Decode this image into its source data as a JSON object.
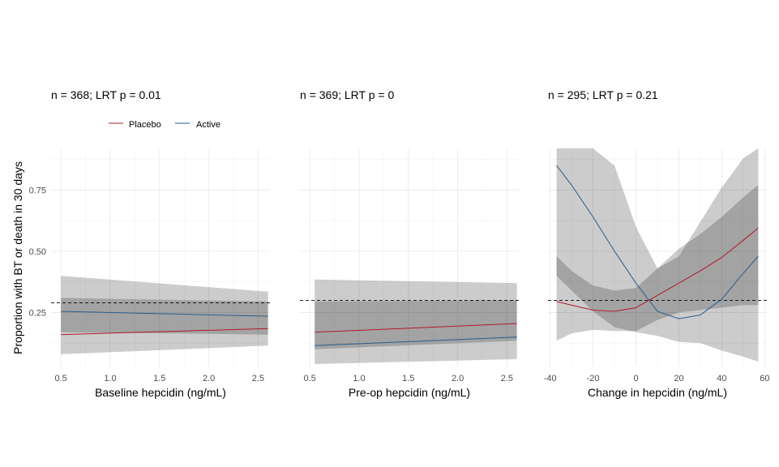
{
  "figure": {
    "ylabel": "Proportion with BT or death in 30 days",
    "legend": [
      {
        "label": "Placebo",
        "color": "#b2182b"
      },
      {
        "label": "Active",
        "color": "#2b5c8a"
      }
    ]
  },
  "chart_data": [
    {
      "type": "line",
      "title": "n = 368; LRT p = 0.01",
      "xlabel": "Baseline hepcidin (ng/mL)",
      "ylabel": "Proportion with BT or death in 30 days",
      "xlim": [
        0.4,
        2.62
      ],
      "ylim": [
        0.03,
        0.92
      ],
      "xticks": [
        0.5,
        1.0,
        1.5,
        2.0,
        2.5
      ],
      "xtick_labels": [
        "0.5",
        "1.0",
        "1.5",
        "2.0",
        "2.5"
      ],
      "yticks": [
        0.25,
        0.5,
        0.75
      ],
      "ytick_labels": [
        "0.25",
        "0.50",
        "0.75"
      ],
      "reference_line": 0.29,
      "legend_position": "top",
      "grid": true,
      "series": [
        {
          "name": "Placebo",
          "color": "#b2182b",
          "x": [
            0.5,
            2.6
          ],
          "y": [
            0.16,
            0.185
          ],
          "lower": [
            0.08,
            0.115
          ],
          "upper": [
            0.31,
            0.295
          ]
        },
        {
          "name": "Active",
          "color": "#2b5c8a",
          "x": [
            0.5,
            2.6
          ],
          "y": [
            0.255,
            0.235
          ],
          "lower": [
            0.17,
            0.16
          ],
          "upper": [
            0.4,
            0.335
          ]
        }
      ]
    },
    {
      "type": "line",
      "title": "n = 369; LRT p = 0",
      "xlabel": "Pre-op hepcidin (ng/mL)",
      "xlim": [
        0.4,
        2.62
      ],
      "ylim": [
        0.03,
        0.92
      ],
      "xticks": [
        0.5,
        1.0,
        1.5,
        2.0,
        2.5
      ],
      "xtick_labels": [
        "0.5",
        "1.0",
        "1.5",
        "2.0",
        "2.5"
      ],
      "yticks": [
        0.25,
        0.5,
        0.75
      ],
      "reference_line": 0.3,
      "grid": true,
      "series": [
        {
          "name": "Placebo",
          "color": "#b2182b",
          "x": [
            0.55,
            2.6
          ],
          "y": [
            0.17,
            0.205
          ],
          "lower": [
            0.1,
            0.135
          ],
          "upper": [
            0.295,
            0.3
          ]
        },
        {
          "name": "Active",
          "color": "#2b5c8a",
          "x": [
            0.55,
            2.6
          ],
          "y": [
            0.115,
            0.15
          ],
          "lower": [
            0.04,
            0.06
          ],
          "upper": [
            0.385,
            0.37
          ]
        }
      ]
    },
    {
      "type": "line",
      "title": "n = 295; LRT p = 0.21",
      "xlabel": "Change in hepcidin (ng/mL)",
      "xlim": [
        -41,
        61
      ],
      "ylim": [
        0.03,
        0.92
      ],
      "xticks": [
        -40,
        -20,
        0,
        20,
        40,
        60
      ],
      "xtick_labels": [
        "-40",
        "-20",
        "0",
        "20",
        "40",
        "60"
      ],
      "yticks": [
        0.25,
        0.5,
        0.75
      ],
      "reference_line": 0.3,
      "grid": true,
      "series": [
        {
          "name": "Placebo",
          "color": "#b2182b",
          "x": [
            -37,
            -30,
            -20,
            -10,
            0,
            10,
            20,
            30,
            40,
            50,
            57
          ],
          "y": [
            0.295,
            0.28,
            0.26,
            0.255,
            0.27,
            0.32,
            0.37,
            0.42,
            0.475,
            0.545,
            0.595
          ],
          "lower": [
            0.135,
            0.165,
            0.18,
            0.175,
            0.175,
            0.22,
            0.25,
            0.26,
            0.27,
            0.28,
            0.28
          ],
          "upper": [
            0.48,
            0.42,
            0.36,
            0.34,
            0.35,
            0.43,
            0.51,
            0.57,
            0.64,
            0.72,
            0.77
          ]
        },
        {
          "name": "Active",
          "color": "#2b5c8a",
          "x": [
            -37,
            -30,
            -20,
            -10,
            0,
            10,
            20,
            30,
            40,
            50,
            57
          ],
          "y": [
            0.85,
            0.77,
            0.64,
            0.5,
            0.37,
            0.255,
            0.225,
            0.24,
            0.305,
            0.41,
            0.48
          ],
          "lower": [
            0.4,
            0.34,
            0.255,
            0.19,
            0.17,
            0.155,
            0.13,
            0.125,
            0.095,
            0.07,
            0.05
          ],
          "upper": [
            0.92,
            0.92,
            0.92,
            0.85,
            0.6,
            0.43,
            0.48,
            0.62,
            0.76,
            0.88,
            0.92
          ]
        }
      ]
    }
  ]
}
